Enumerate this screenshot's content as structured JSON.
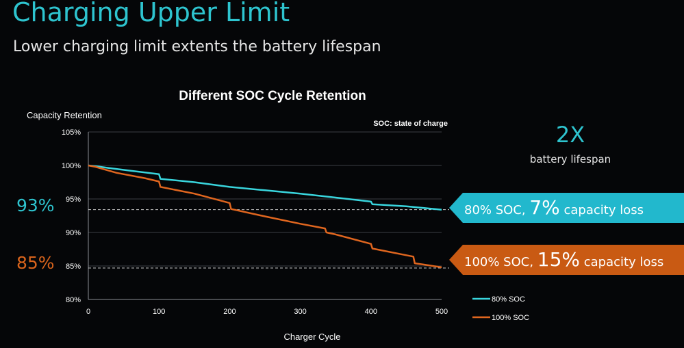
{
  "header": {
    "title": "Charging Upper Limit",
    "subtitle": "Lower charging limit extents the battery lifespan"
  },
  "side_labels": {
    "left_top": "93%",
    "left_bottom": "85%",
    "twox": "2X",
    "lifespan": "battery lifespan"
  },
  "callouts": {
    "cyan": {
      "pre": "80% SOC, ",
      "big": "7%",
      "post": " capacity loss"
    },
    "orange": {
      "pre": "100% SOC, ",
      "big": "15%",
      "post": " capacity loss"
    }
  },
  "colors": {
    "accent_cyan": "#2ec4cf",
    "accent_orange": "#d9641c",
    "series_cyan": "#39d5dd",
    "series_orange": "#e0661f",
    "callout_cyan": "#22b8cd",
    "callout_orange": "#c95a13"
  },
  "chart_data": {
    "type": "line",
    "title": "Different SOC Cycle Retention",
    "annotation": "SOC: state of charge",
    "ylabel": "Capacity Retention",
    "xlabel": "Charger Cycle",
    "xlim": [
      0,
      500
    ],
    "ylim": [
      80,
      105
    ],
    "x_ticks": [
      "0",
      "100",
      "200",
      "300",
      "400",
      "500"
    ],
    "y_ticks": [
      "80%",
      "85%",
      "90%",
      "95%",
      "100%",
      "105%"
    ],
    "grid": "horizontal",
    "legend_position": "bottom-right",
    "reference_lines": [
      93.4,
      84.7
    ],
    "series": [
      {
        "name": "80% SOC",
        "color": "#39d5dd",
        "points": [
          [
            0,
            100
          ],
          [
            10,
            99.9
          ],
          [
            30,
            99.6
          ],
          [
            60,
            99.2
          ],
          [
            100,
            98.7
          ],
          [
            102,
            98.0
          ],
          [
            150,
            97.5
          ],
          [
            200,
            96.8
          ],
          [
            250,
            96.3
          ],
          [
            300,
            95.8
          ],
          [
            350,
            95.2
          ],
          [
            400,
            94.6
          ],
          [
            402,
            94.2
          ],
          [
            450,
            93.9
          ],
          [
            480,
            93.6
          ],
          [
            500,
            93.4
          ]
        ]
      },
      {
        "name": "100% SOC",
        "color": "#e0661f",
        "points": [
          [
            0,
            100
          ],
          [
            10,
            99.8
          ],
          [
            40,
            98.9
          ],
          [
            80,
            98.1
          ],
          [
            100,
            97.6
          ],
          [
            102,
            96.8
          ],
          [
            150,
            95.8
          ],
          [
            200,
            94.4
          ],
          [
            202,
            93.5
          ],
          [
            250,
            92.4
          ],
          [
            300,
            91.3
          ],
          [
            335,
            90.6
          ],
          [
            337,
            90.0
          ],
          [
            350,
            89.7
          ],
          [
            400,
            88.3
          ],
          [
            402,
            87.6
          ],
          [
            450,
            86.6
          ],
          [
            460,
            86.4
          ],
          [
            462,
            85.4
          ],
          [
            475,
            85.2
          ],
          [
            500,
            84.8
          ]
        ]
      }
    ]
  }
}
